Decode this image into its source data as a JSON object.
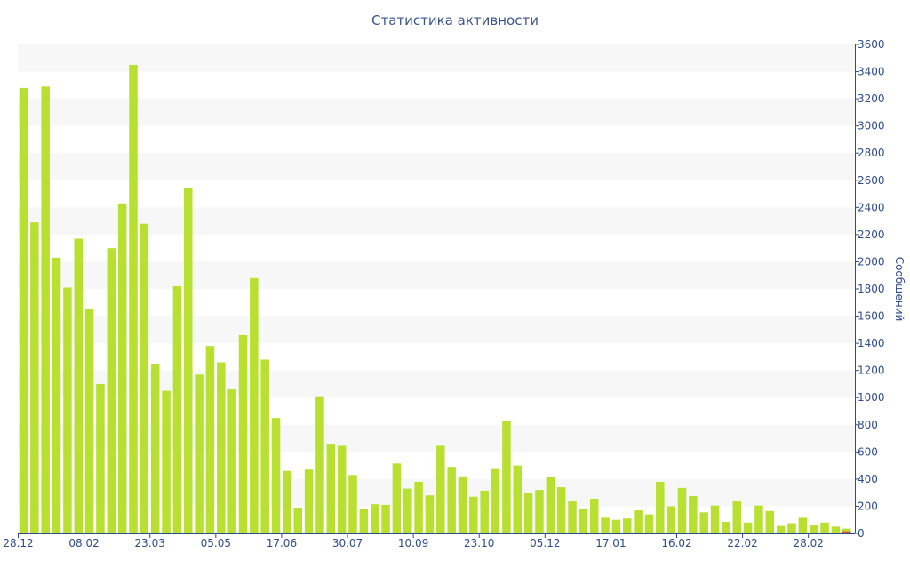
{
  "chart_data": {
    "type": "bar",
    "title": "Статистика активности",
    "ylabel": "Сообщений",
    "xlabel": "",
    "ylim": [
      0,
      3600
    ],
    "y_ticks": [
      0,
      200,
      400,
      600,
      800,
      1000,
      1200,
      1400,
      1600,
      1800,
      2000,
      2200,
      2400,
      2600,
      2800,
      3000,
      3200,
      3400,
      3600
    ],
    "x_tick_labels": [
      {
        "label": "28.12",
        "index": 0
      },
      {
        "label": "08.02",
        "index": 6
      },
      {
        "label": "23.03",
        "index": 12
      },
      {
        "label": "05.05",
        "index": 18
      },
      {
        "label": "17.06",
        "index": 24
      },
      {
        "label": "30.07",
        "index": 30
      },
      {
        "label": "10.09",
        "index": 36
      },
      {
        "label": "23.10",
        "index": 42
      },
      {
        "label": "05.12",
        "index": 48
      },
      {
        "label": "17.01",
        "index": 54
      },
      {
        "label": "16.02",
        "index": 60
      },
      {
        "label": "22.02",
        "index": 66
      },
      {
        "label": "28.02",
        "index": 72
      }
    ],
    "grid": "alternating horizontal bands",
    "y_axis_position": "right",
    "bar_color": "#b8e030",
    "highlight_color": "#e0453a",
    "band_color": "#f7f7f7",
    "axis_color": "#2e4c8a",
    "series": [
      {
        "values": [
          3280,
          2290,
          3290,
          2030,
          1810,
          2170,
          1650,
          1100,
          2100,
          2430,
          3450,
          2280,
          1250,
          1050,
          1820,
          2540,
          1170,
          1380,
          1260,
          1060,
          1460,
          1880,
          1280,
          850,
          460,
          190,
          470,
          1010,
          660,
          645,
          430,
          180,
          215,
          210,
          515,
          330,
          380,
          280,
          645,
          490,
          420,
          270,
          315,
          480,
          830,
          500,
          295,
          320,
          415,
          340,
          235,
          180,
          255,
          115,
          100,
          110,
          170,
          140,
          380,
          200,
          335,
          275,
          155,
          205,
          85,
          235,
          80,
          205,
          165,
          55,
          75,
          115,
          60,
          80,
          50,
          35
        ],
        "last_bar_highlight": 15
      }
    ]
  }
}
